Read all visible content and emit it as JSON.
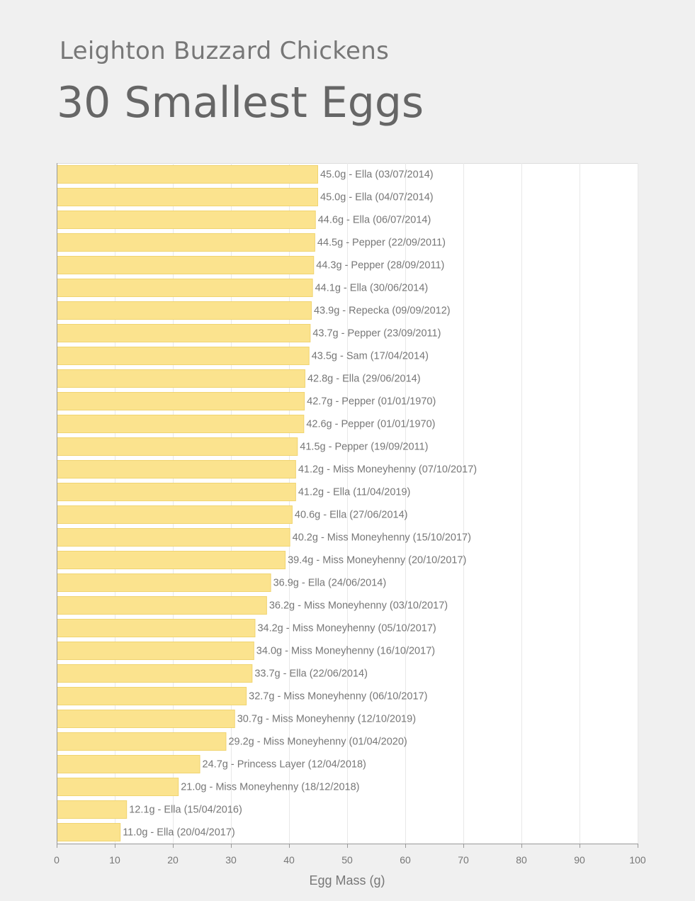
{
  "page": {
    "subtitle": "Leighton Buzzard Chickens",
    "title": "30 Smallest Eggs"
  },
  "colors": {
    "background": "#f0f0f0",
    "plot_background": "#ffffff",
    "bar_fill": "#fbe38e",
    "bar_stroke": "#f0d470",
    "gridline": "#e8e8e8",
    "text": "#777777"
  },
  "chart_data": {
    "type": "bar",
    "orientation": "horizontal",
    "xlabel": "Egg Mass (g)",
    "xlim": [
      0,
      100
    ],
    "xticks": [
      0,
      10,
      20,
      30,
      40,
      50,
      60,
      70,
      80,
      90,
      100
    ],
    "grid": true,
    "bars": [
      {
        "value": 45.0,
        "label": "45.0g - Ella (03/07/2014)"
      },
      {
        "value": 45.0,
        "label": "45.0g - Ella (04/07/2014)"
      },
      {
        "value": 44.6,
        "label": "44.6g - Ella (06/07/2014)"
      },
      {
        "value": 44.5,
        "label": "44.5g - Pepper (22/09/2011)"
      },
      {
        "value": 44.3,
        "label": "44.3g - Pepper (28/09/2011)"
      },
      {
        "value": 44.1,
        "label": "44.1g - Ella (30/06/2014)"
      },
      {
        "value": 43.9,
        "label": "43.9g - Repecka (09/09/2012)"
      },
      {
        "value": 43.7,
        "label": "43.7g - Pepper (23/09/2011)"
      },
      {
        "value": 43.5,
        "label": "43.5g - Sam (17/04/2014)"
      },
      {
        "value": 42.8,
        "label": "42.8g - Ella (29/06/2014)"
      },
      {
        "value": 42.7,
        "label": "42.7g - Pepper (01/01/1970)"
      },
      {
        "value": 42.6,
        "label": "42.6g - Pepper (01/01/1970)"
      },
      {
        "value": 41.5,
        "label": "41.5g - Pepper (19/09/2011)"
      },
      {
        "value": 41.2,
        "label": "41.2g - Miss Moneyhenny (07/10/2017)"
      },
      {
        "value": 41.2,
        "label": "41.2g - Ella (11/04/2019)"
      },
      {
        "value": 40.6,
        "label": "40.6g - Ella (27/06/2014)"
      },
      {
        "value": 40.2,
        "label": "40.2g - Miss Moneyhenny (15/10/2017)"
      },
      {
        "value": 39.4,
        "label": "39.4g - Miss Moneyhenny (20/10/2017)"
      },
      {
        "value": 36.9,
        "label": "36.9g - Ella (24/06/2014)"
      },
      {
        "value": 36.2,
        "label": "36.2g - Miss Moneyhenny (03/10/2017)"
      },
      {
        "value": 34.2,
        "label": "34.2g - Miss Moneyhenny (05/10/2017)"
      },
      {
        "value": 34.0,
        "label": "34.0g - Miss Moneyhenny (16/10/2017)"
      },
      {
        "value": 33.7,
        "label": "33.7g - Ella (22/06/2014)"
      },
      {
        "value": 32.7,
        "label": "32.7g - Miss Moneyhenny (06/10/2017)"
      },
      {
        "value": 30.7,
        "label": "30.7g - Miss Moneyhenny (12/10/2019)"
      },
      {
        "value": 29.2,
        "label": "29.2g - Miss Moneyhenny (01/04/2020)"
      },
      {
        "value": 24.7,
        "label": "24.7g - Princess Layer (12/04/2018)"
      },
      {
        "value": 21.0,
        "label": "21.0g - Miss Moneyhenny (18/12/2018)"
      },
      {
        "value": 12.1,
        "label": "12.1g - Ella (15/04/2016)"
      },
      {
        "value": 11.0,
        "label": "11.0g - Ella (20/04/2017)"
      }
    ]
  }
}
